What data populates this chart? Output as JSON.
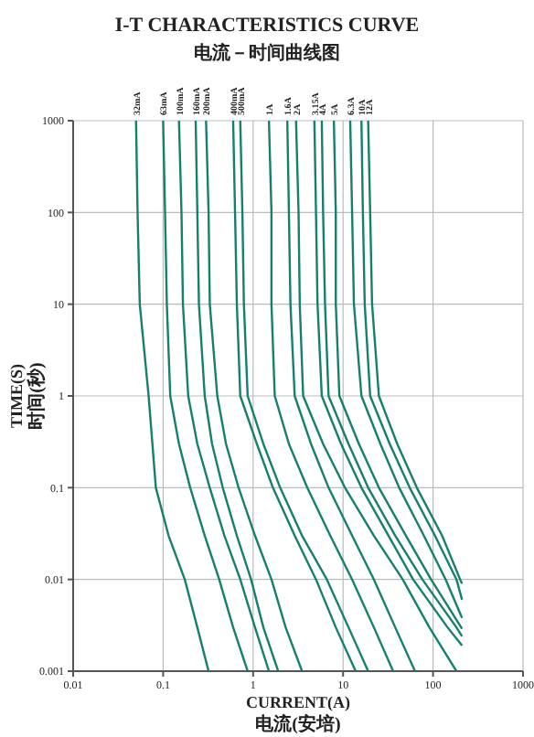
{
  "chart_data": {
    "type": "line",
    "title": "I-T CHARACTERISTICS CURVE",
    "subtitle": "电流－时间曲线图",
    "xlabel": "CURRENT(A)\n电流(安培)",
    "ylabel": "TIME(S)\n时间(秒)",
    "log": "xy",
    "grid": true,
    "marker": "none",
    "line_style": "solid",
    "xlim": [
      0.01,
      1000
    ],
    "xticks": [
      0.01,
      0.1,
      1,
      10,
      100,
      1000
    ],
    "ylim": [
      0.001,
      1000
    ],
    "yticks": [
      0.001,
      0.01,
      0.1,
      1,
      10,
      100,
      1000
    ],
    "series": [
      {
        "name": "32mA",
        "color": "#17806d",
        "x": [
          0.05,
          0.052,
          0.055,
          0.069,
          0.076,
          0.083,
          0.115,
          0.174,
          0.24,
          0.32
        ],
        "values": [
          1000,
          100,
          10,
          1,
          0.3,
          0.1,
          0.03,
          0.01,
          0.003,
          0.001
        ]
      },
      {
        "name": "63mA",
        "color": "#17806d",
        "x": [
          0.1,
          0.105,
          0.11,
          0.12,
          0.15,
          0.2,
          0.29,
          0.42,
          0.6,
          0.87
        ],
        "values": [
          1000,
          100,
          10,
          1,
          0.3,
          0.1,
          0.03,
          0.01,
          0.003,
          0.001
        ]
      },
      {
        "name": "100mA",
        "color": "#17806d",
        "x": [
          0.15,
          0.16,
          0.166,
          0.19,
          0.24,
          0.33,
          0.48,
          0.72,
          1.05,
          1.5
        ],
        "values": [
          1000,
          100,
          10,
          1,
          0.3,
          0.1,
          0.03,
          0.01,
          0.003,
          0.001
        ]
      },
      {
        "name": "160mA",
        "color": "#17806d",
        "x": [
          0.23,
          0.24,
          0.25,
          0.29,
          0.35,
          0.46,
          0.66,
          0.95,
          1.3,
          1.9
        ],
        "values": [
          1000,
          100,
          10,
          1,
          0.3,
          0.1,
          0.03,
          0.01,
          0.003,
          0.001
        ]
      },
      {
        "name": "200mA",
        "color": "#17806d",
        "x": [
          0.3,
          0.32,
          0.33,
          0.4,
          0.5,
          0.69,
          1.05,
          1.6,
          2.3,
          3.5
        ],
        "values": [
          1000,
          100,
          10,
          1,
          0.3,
          0.1,
          0.03,
          0.01,
          0.003,
          0.001
        ]
      },
      {
        "name": "400mA",
        "color": "#17806d",
        "x": [
          0.6,
          0.63,
          0.66,
          0.72,
          1.1,
          1.66,
          2.9,
          5,
          8.3,
          13.8
        ],
        "values": [
          1000,
          100,
          10,
          1,
          0.3,
          0.1,
          0.03,
          0.01,
          0.003,
          0.001
        ]
      },
      {
        "name": "500mA",
        "color": "#17806d",
        "x": [
          0.72,
          0.76,
          0.79,
          0.87,
          1.3,
          2,
          3.5,
          6.6,
          11.5,
          19
        ],
        "values": [
          1000,
          100,
          10,
          1,
          0.3,
          0.1,
          0.03,
          0.01,
          0.003,
          0.001
        ]
      },
      {
        "name": "1A",
        "color": "#17806d",
        "x": [
          1.5,
          1.6,
          1.6,
          1.74,
          2.5,
          4,
          7.2,
          12.6,
          22,
          36
        ],
        "values": [
          1000,
          100,
          10,
          1,
          0.3,
          0.1,
          0.03,
          0.01,
          0.003,
          0.001
        ]
      },
      {
        "name": "1.6A",
        "color": "#17806d",
        "x": [
          2.4,
          2.5,
          2.6,
          2.9,
          4.4,
          6.9,
          12.6,
          22,
          38,
          63
        ],
        "values": [
          1000,
          100,
          10,
          1,
          0.3,
          0.1,
          0.03,
          0.01,
          0.003,
          0.001
        ]
      },
      {
        "name": "2A",
        "color": "#17806d",
        "x": [
          3,
          3.2,
          3.3,
          3.6,
          6,
          10.5,
          22,
          46,
          91,
          182
        ],
        "values": [
          1000,
          100,
          10,
          1,
          0.3,
          0.1,
          0.03,
          0.01,
          0.003,
          0.001
        ]
      },
      {
        "name": "3.15A",
        "color": "#17806d",
        "x": [
          4.8,
          5,
          5.2,
          5.8,
          9.5,
          16,
          32,
          60,
          145,
          210
        ],
        "values": [
          1000,
          100,
          10,
          1,
          0.3,
          0.1,
          0.03,
          0.01,
          0.003,
          0.0019
        ]
      },
      {
        "name": "4A",
        "color": "#17806d",
        "x": [
          5.8,
          6,
          6.3,
          6.9,
          11.5,
          19,
          38,
          76,
          182,
          210
        ],
        "values": [
          1000,
          100,
          10,
          1,
          0.3,
          0.1,
          0.03,
          0.01,
          0.003,
          0.0024
        ]
      },
      {
        "name": "5A",
        "color": "#17806d",
        "x": [
          7.9,
          8.3,
          8.3,
          9.1,
          15,
          25,
          50,
          95,
          210
        ],
        "values": [
          1000,
          100,
          10,
          1,
          0.3,
          0.1,
          0.03,
          0.01,
          0.0029
        ]
      },
      {
        "name": "6.3A",
        "color": "#17806d",
        "x": [
          12,
          12.6,
          13.2,
          16,
          26,
          42,
          79,
          138,
          210
        ],
        "values": [
          1000,
          100,
          10,
          1,
          0.3,
          0.1,
          0.03,
          0.01,
          0.0038
        ]
      },
      {
        "name": "10A",
        "color": "#17806d",
        "x": [
          16,
          16.6,
          17.4,
          20,
          33,
          55,
          105,
          182,
          210
        ],
        "values": [
          1000,
          100,
          10,
          1,
          0.3,
          0.1,
          0.03,
          0.01,
          0.006
        ]
      },
      {
        "name": "12A",
        "color": "#17806d",
        "x": [
          19,
          20,
          21,
          25,
          40,
          66,
          126,
          200,
          210
        ],
        "values": [
          1000,
          100,
          10,
          1,
          0.3,
          0.1,
          0.03,
          0.01,
          0.009
        ]
      }
    ]
  }
}
